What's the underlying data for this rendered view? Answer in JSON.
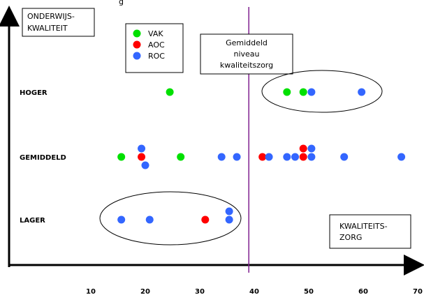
{
  "chart_data": {
    "type": "scatter",
    "top_caption": "g",
    "y_axis_box": [
      "ONDERWIJS-",
      "KWALITEIT"
    ],
    "x_axis_box": [
      "KWALITEITS-",
      "ZORG"
    ],
    "reference_line": {
      "x": 39,
      "label": [
        "Gemiddeld",
        "niveau",
        "kwaliteitszorg"
      ]
    },
    "y_categories": [
      "LAGER",
      "GEMIDDELD",
      "HOGER"
    ],
    "x_ticks": [
      10,
      20,
      30,
      40,
      50,
      60,
      70
    ],
    "xlim": [
      0,
      70
    ],
    "legend": [
      {
        "name": "VAK",
        "color": "#00e000"
      },
      {
        "name": "AOC",
        "color": "#ff0000"
      },
      {
        "name": "ROC",
        "color": "#3366ff"
      }
    ],
    "series": [
      {
        "name": "VAK",
        "color": "#00e000",
        "points": [
          {
            "x": 24.5,
            "y": "HOGER"
          },
          {
            "x": 46.0,
            "y": "HOGER"
          },
          {
            "x": 49.0,
            "y": "HOGER"
          },
          {
            "x": 15.6,
            "y": "GEMIDDELD"
          },
          {
            "x": 26.5,
            "y": "GEMIDDELD"
          }
        ]
      },
      {
        "name": "AOC",
        "color": "#ff0000",
        "points": [
          {
            "x": 19.3,
            "y": "GEMIDDELD"
          },
          {
            "x": 41.5,
            "y": "GEMIDDELD"
          },
          {
            "x": 49.0,
            "y": "GEMIDDELD",
            "offset": -1
          },
          {
            "x": 49.0,
            "y": "GEMIDDELD"
          },
          {
            "x": 31.0,
            "y": "LAGER"
          }
        ]
      },
      {
        "name": "ROC",
        "color": "#3366ff",
        "points": [
          {
            "x": 50.5,
            "y": "HOGER"
          },
          {
            "x": 59.7,
            "y": "HOGER"
          },
          {
            "x": 19.3,
            "y": "GEMIDDELD",
            "offset": -1
          },
          {
            "x": 20.0,
            "y": "GEMIDDELD",
            "offset": 1
          },
          {
            "x": 34.0,
            "y": "GEMIDDELD"
          },
          {
            "x": 36.8,
            "y": "GEMIDDELD"
          },
          {
            "x": 42.7,
            "y": "GEMIDDELD"
          },
          {
            "x": 46.0,
            "y": "GEMIDDELD"
          },
          {
            "x": 47.5,
            "y": "GEMIDDELD"
          },
          {
            "x": 50.5,
            "y": "GEMIDDELD",
            "offset": -1
          },
          {
            "x": 50.5,
            "y": "GEMIDDELD"
          },
          {
            "x": 56.5,
            "y": "GEMIDDELD"
          },
          {
            "x": 67.0,
            "y": "GEMIDDELD"
          },
          {
            "x": 15.6,
            "y": "LAGER"
          },
          {
            "x": 20.8,
            "y": "LAGER"
          },
          {
            "x": 35.4,
            "y": "LAGER",
            "offset": -1
          },
          {
            "x": 35.4,
            "y": "LAGER"
          }
        ]
      }
    ]
  }
}
